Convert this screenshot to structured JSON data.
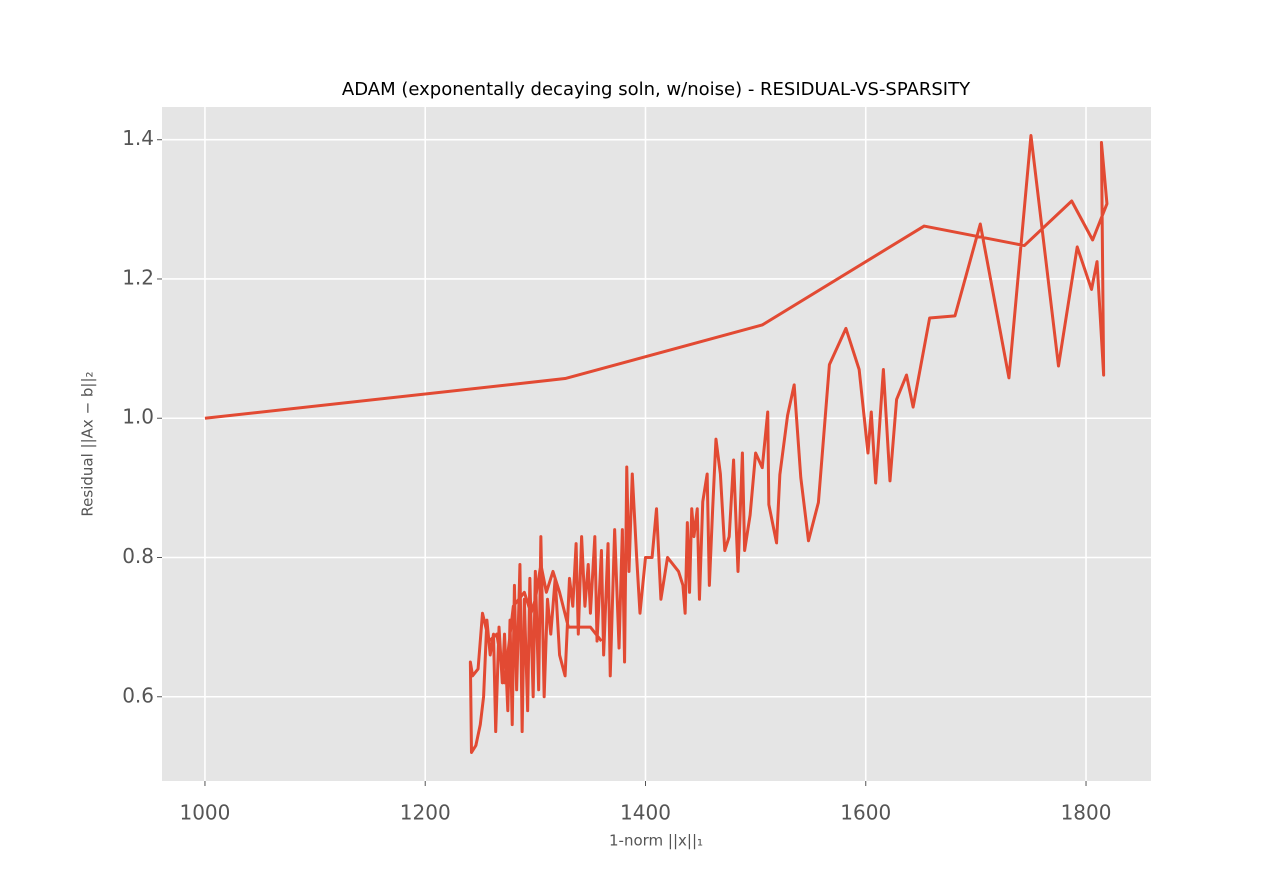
{
  "chart_data": {
    "type": "line",
    "title": "ADAM (exponentally decaying soln, w/noise) - RESIDUAL-VS-SPARSITY",
    "x_label": "1-norm ||x||₁",
    "y_label": "Residual ||Ax − b||₂",
    "x": [
      1000,
      1327,
      1506,
      1653,
      1744,
      1787,
      1806,
      1819,
      1814,
      1816,
      1810,
      1805,
      1792,
      1775,
      1750,
      1730,
      1704,
      1681,
      1658,
      1643,
      1637,
      1628,
      1622,
      1616,
      1609,
      1605,
      1602,
      1594,
      1582,
      1567,
      1557,
      1548,
      1541,
      1535,
      1529,
      1522,
      1519,
      1512,
      1511,
      1506,
      1500,
      1495,
      1490,
      1488,
      1484,
      1480,
      1476,
      1472,
      1468,
      1464,
      1461,
      1458,
      1456,
      1452,
      1449,
      1447,
      1444,
      1442,
      1440,
      1438,
      1436,
      1434,
      1430,
      1420,
      1414,
      1410,
      1406,
      1400,
      1395,
      1392,
      1388,
      1385,
      1383,
      1381,
      1379,
      1376,
      1372,
      1368,
      1366,
      1362,
      1360,
      1356,
      1354,
      1350,
      1348,
      1345,
      1342,
      1339,
      1337,
      1334,
      1331,
      1327,
      1322,
      1318,
      1314,
      1311,
      1308,
      1305,
      1303,
      1300,
      1298,
      1295,
      1293,
      1290,
      1288,
      1286,
      1283,
      1281,
      1279,
      1277,
      1275,
      1272,
      1270,
      1267,
      1264,
      1262,
      1259,
      1256,
      1253,
      1250,
      1246,
      1242,
      1241,
      1243,
      1248,
      1252,
      1258,
      1265,
      1272,
      1280,
      1290,
      1296,
      1300,
      1305,
      1310,
      1316,
      1322,
      1330,
      1340,
      1350,
      1360
    ],
    "series": [
      {
        "name": "residual",
        "color": "#e24a33",
        "values": [
          1.0,
          1.057,
          1.134,
          1.276,
          1.248,
          1.312,
          1.256,
          1.308,
          1.396,
          1.062,
          1.225,
          1.185,
          1.246,
          1.075,
          1.406,
          1.058,
          1.279,
          1.147,
          1.144,
          1.016,
          1.062,
          1.027,
          0.91,
          1.07,
          0.907,
          1.009,
          0.95,
          1.07,
          1.129,
          1.077,
          0.879,
          0.824,
          0.915,
          1.048,
          1.004,
          0.919,
          0.821,
          0.876,
          1.009,
          0.929,
          0.95,
          0.861,
          0.81,
          0.95,
          0.78,
          0.94,
          0.83,
          0.81,
          0.92,
          0.97,
          0.87,
          0.76,
          0.92,
          0.88,
          0.74,
          0.87,
          0.83,
          0.87,
          0.75,
          0.85,
          0.72,
          0.76,
          0.78,
          0.8,
          0.74,
          0.87,
          0.8,
          0.8,
          0.72,
          0.8,
          0.92,
          0.78,
          0.93,
          0.65,
          0.84,
          0.67,
          0.84,
          0.63,
          0.82,
          0.66,
          0.81,
          0.68,
          0.83,
          0.72,
          0.79,
          0.73,
          0.83,
          0.69,
          0.82,
          0.73,
          0.77,
          0.63,
          0.66,
          0.77,
          0.69,
          0.74,
          0.6,
          0.83,
          0.61,
          0.78,
          0.6,
          0.77,
          0.58,
          0.74,
          0.55,
          0.79,
          0.61,
          0.76,
          0.56,
          0.71,
          0.58,
          0.69,
          0.62,
          0.7,
          0.55,
          0.69,
          0.66,
          0.71,
          0.6,
          0.56,
          0.53,
          0.52,
          0.65,
          0.63,
          0.64,
          0.72,
          0.68,
          0.69,
          0.62,
          0.73,
          0.75,
          0.72,
          0.74,
          0.79,
          0.75,
          0.78,
          0.75,
          0.7,
          0.7,
          0.7,
          0.68
        ]
      }
    ],
    "xlim": [
      961,
      1859
    ],
    "ylim": [
      0.479,
      1.447
    ],
    "xticks": [
      1000,
      1200,
      1400,
      1600,
      1800
    ],
    "yticks": [
      0.6,
      0.8,
      {
        "value": 1,
        "label": "1.0"
      },
      1.2,
      1.4
    ],
    "grid": true
  }
}
